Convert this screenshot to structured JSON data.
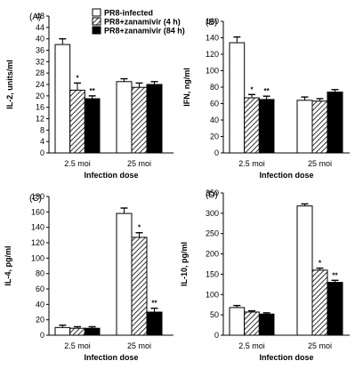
{
  "legend": {
    "placement": "top-left of panel A",
    "entries": [
      {
        "label": "PR8-infected",
        "style": "white"
      },
      {
        "label": "PR8+zanamivir (4 h)",
        "style": "hatched"
      },
      {
        "label": "PR8+zanamivir (84 h)",
        "style": "black"
      }
    ]
  },
  "chart_data": [
    {
      "type": "bar",
      "panel": "(A)",
      "categories": [
        "2.5 moi",
        "25 moi"
      ],
      "xlabel": "Infection dose",
      "ylabel": "IL-2, units/ml",
      "ylim": [
        0,
        48
      ],
      "yticks": [
        0,
        4,
        8,
        12,
        16,
        20,
        24,
        28,
        32,
        36,
        40,
        44,
        48
      ],
      "series": [
        {
          "name": "PR8-infected",
          "values": [
            38,
            25
          ],
          "errors": [
            2,
            1
          ]
        },
        {
          "name": "PR8+zanamivir (4 h)",
          "values": [
            22,
            23
          ],
          "errors": [
            2.5,
            1.5
          ]
        },
        {
          "name": "PR8+zanamivir (84 h)",
          "values": [
            19,
            24
          ],
          "errors": [
            1,
            1
          ]
        }
      ],
      "annotations": [
        {
          "category": "2.5 moi",
          "series": 1,
          "text": "*"
        },
        {
          "category": "2.5 moi",
          "series": 2,
          "text": "**"
        }
      ]
    },
    {
      "type": "bar",
      "panel": "(B)",
      "categories": [
        "2.5 moi",
        "25 moi"
      ],
      "xlabel": "Infection dose",
      "ylabel": "IFN, ng/ml",
      "ylim": [
        0,
        160
      ],
      "yticks": [
        0,
        20,
        40,
        60,
        80,
        100,
        120,
        140,
        160
      ],
      "series": [
        {
          "name": "PR8-infected",
          "values": [
            134,
            64
          ],
          "errors": [
            7,
            4
          ]
        },
        {
          "name": "PR8+zanamivir (4 h)",
          "values": [
            67,
            63
          ],
          "errors": [
            4,
            3
          ]
        },
        {
          "name": "PR8+zanamivir (84 h)",
          "values": [
            65,
            74
          ],
          "errors": [
            4,
            3
          ]
        }
      ],
      "annotations": [
        {
          "category": "2.5 moi",
          "series": 1,
          "text": "*"
        },
        {
          "category": "2.5 moi",
          "series": 2,
          "text": "**"
        }
      ]
    },
    {
      "type": "bar",
      "panel": "(C)",
      "categories": [
        "2.5 moi",
        "25 moi"
      ],
      "xlabel": "Infection dose",
      "ylabel": "IL-4, pg/ml",
      "ylim": [
        0,
        180
      ],
      "yticks": [
        0,
        20,
        40,
        60,
        80,
        100,
        120,
        140,
        160,
        180
      ],
      "series": [
        {
          "name": "PR8-infected",
          "values": [
            10,
            158
          ],
          "errors": [
            3,
            7
          ]
        },
        {
          "name": "PR8+zanamivir (4 h)",
          "values": [
            9,
            127
          ],
          "errors": [
            2,
            6
          ]
        },
        {
          "name": "PR8+zanamivir (84 h)",
          "values": [
            9,
            30
          ],
          "errors": [
            2,
            5
          ]
        }
      ],
      "annotations": [
        {
          "category": "25 moi",
          "series": 1,
          "text": "*"
        },
        {
          "category": "25 moi",
          "series": 2,
          "text": "**"
        }
      ]
    },
    {
      "type": "bar",
      "panel": "(D)",
      "categories": [
        "2.5 moi",
        "25 moi"
      ],
      "xlabel": "Infection dose",
      "ylabel": "IL-10, pg/ml",
      "ylim": [
        0,
        350
      ],
      "yticks": [
        0,
        50,
        100,
        150,
        200,
        250,
        300,
        350
      ],
      "series": [
        {
          "name": "PR8-infected",
          "values": [
            68,
            318
          ],
          "errors": [
            5,
            5
          ]
        },
        {
          "name": "PR8+zanamivir (4 h)",
          "values": [
            57,
            160
          ],
          "errors": [
            3,
            5
          ]
        },
        {
          "name": "PR8+zanamivir (84 h)",
          "values": [
            52,
            130
          ],
          "errors": [
            3,
            5
          ]
        }
      ],
      "annotations": [
        {
          "category": "25 moi",
          "series": 1,
          "text": "*"
        },
        {
          "category": "25 moi",
          "series": 2,
          "text": "**"
        }
      ]
    }
  ]
}
